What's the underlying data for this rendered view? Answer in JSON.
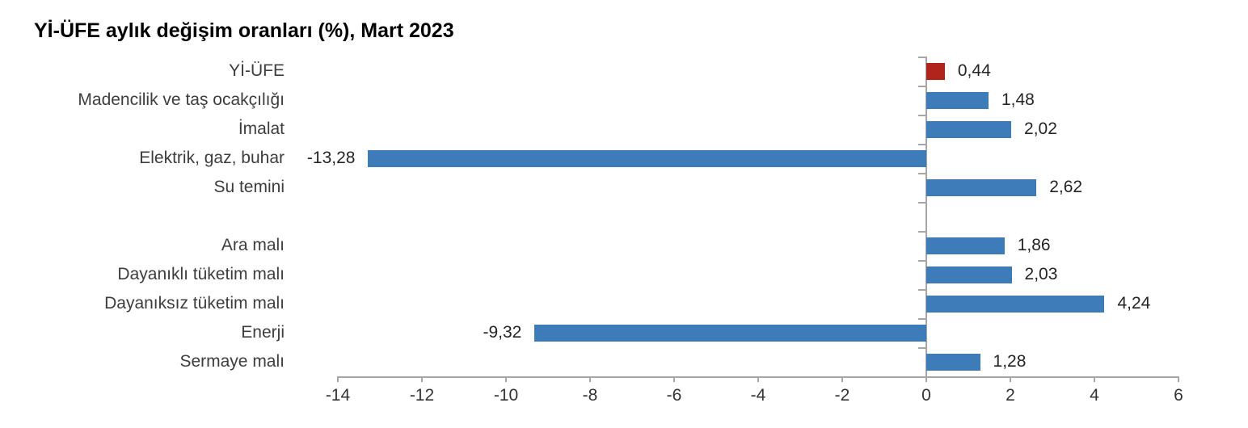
{
  "chart_data": {
    "type": "bar",
    "orientation": "horizontal",
    "title": "Yİ-ÜFE aylık değişim oranları (%), Mart 2023",
    "categories": [
      "Yİ-ÜFE",
      "Madencilik ve taş ocakçılığı",
      "İmalat",
      "Elektrik, gaz, buhar",
      "Su temini",
      "",
      "Ara malı",
      "Dayanıklı tüketim malı",
      "Dayanıksız tüketim malı",
      "Enerji",
      "Sermaye malı"
    ],
    "values": [
      0.44,
      1.48,
      2.02,
      -13.28,
      2.62,
      null,
      1.86,
      2.03,
      4.24,
      -9.32,
      1.28
    ],
    "value_labels": [
      "0,44",
      "1,48",
      "2,02",
      "-13,28",
      "2,62",
      null,
      "1,86",
      "2,03",
      "4,24",
      "-9,32",
      "1,28"
    ],
    "xlabel": "",
    "ylabel": "",
    "xlim": [
      -14,
      6
    ],
    "xtick_step": 2,
    "xtick_labels": [
      "-14",
      "-12",
      "-10",
      "-8",
      "-6",
      "-4",
      "-2",
      "0",
      "2",
      "4",
      "6"
    ],
    "grid": false,
    "legend": false,
    "highlight_index": 0,
    "colors": {
      "bar": "#3e7cb9",
      "highlight": "#b0241c",
      "axis": "#a6a6a6",
      "title_text": "#000000",
      "category_text": "#3d3d3d",
      "value_text": "#242424",
      "tick_text": "#333333"
    }
  }
}
